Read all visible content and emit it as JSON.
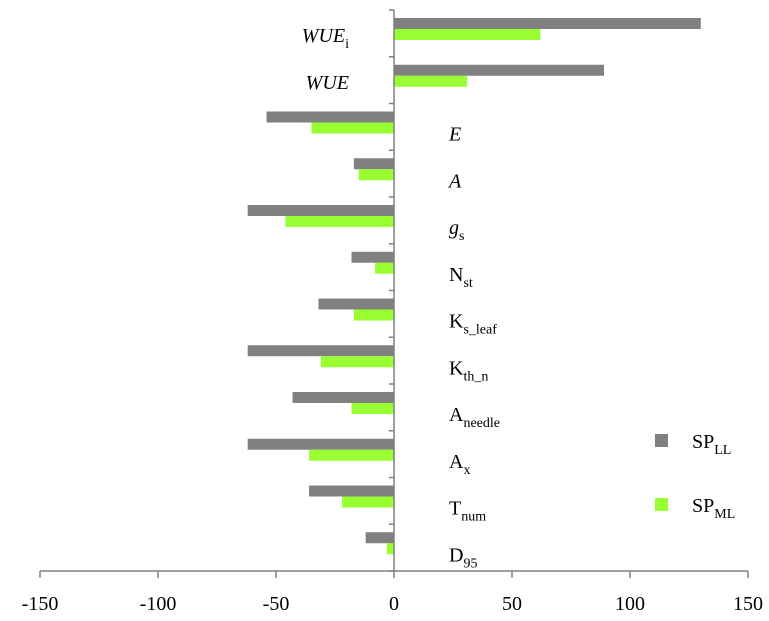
{
  "chart_data": {
    "type": "bar",
    "orientation": "horizontal",
    "categories": [
      {
        "id": "WUEi",
        "main": "WUE",
        "sub": "i",
        "italic": true
      },
      {
        "id": "WUE",
        "main": "WUE",
        "sub": "",
        "italic": true
      },
      {
        "id": "E",
        "main": "E",
        "sub": "",
        "italic": true
      },
      {
        "id": "A",
        "main": "A",
        "sub": "",
        "italic": true
      },
      {
        "id": "gs",
        "main": "g",
        "sub": "s",
        "italic": true
      },
      {
        "id": "Nst",
        "main": "N",
        "sub": "st",
        "italic": false
      },
      {
        "id": "Ks_leaf",
        "main": "K",
        "sub": "s_leaf",
        "italic": false
      },
      {
        "id": "Kth_n",
        "main": "K",
        "sub": "th_n",
        "italic": false
      },
      {
        "id": "Aneedle",
        "main": "A",
        "sub": "needle",
        "italic": false
      },
      {
        "id": "Ax",
        "main": "A",
        "sub": "x",
        "italic": false
      },
      {
        "id": "Tnum",
        "main": "T",
        "sub": "num",
        "italic": false
      },
      {
        "id": "D95",
        "main": "D",
        "sub": "95",
        "italic": false
      }
    ],
    "series": [
      {
        "name": "SP",
        "name_sub": "LL",
        "color": "#808080",
        "values": [
          130,
          89,
          -54,
          -17,
          -62,
          -18,
          -32,
          -62,
          -43,
          -62,
          -36,
          -12
        ]
      },
      {
        "name": "SP",
        "name_sub": "ML",
        "color": "#99ff33",
        "values": [
          62,
          31,
          -35,
          -15,
          -46,
          -8,
          -17,
          -31,
          -18,
          -36,
          -22,
          -3
        ]
      }
    ],
    "xlim": [
      -150,
      150
    ],
    "xticks": [
      "-150",
      "-100",
      "-50",
      "0",
      "50",
      "100",
      "150"
    ],
    "xtick_values": [
      -150,
      -100,
      -50,
      0,
      50,
      100,
      150
    ],
    "grid": false,
    "legend_position": "bottom-right"
  }
}
